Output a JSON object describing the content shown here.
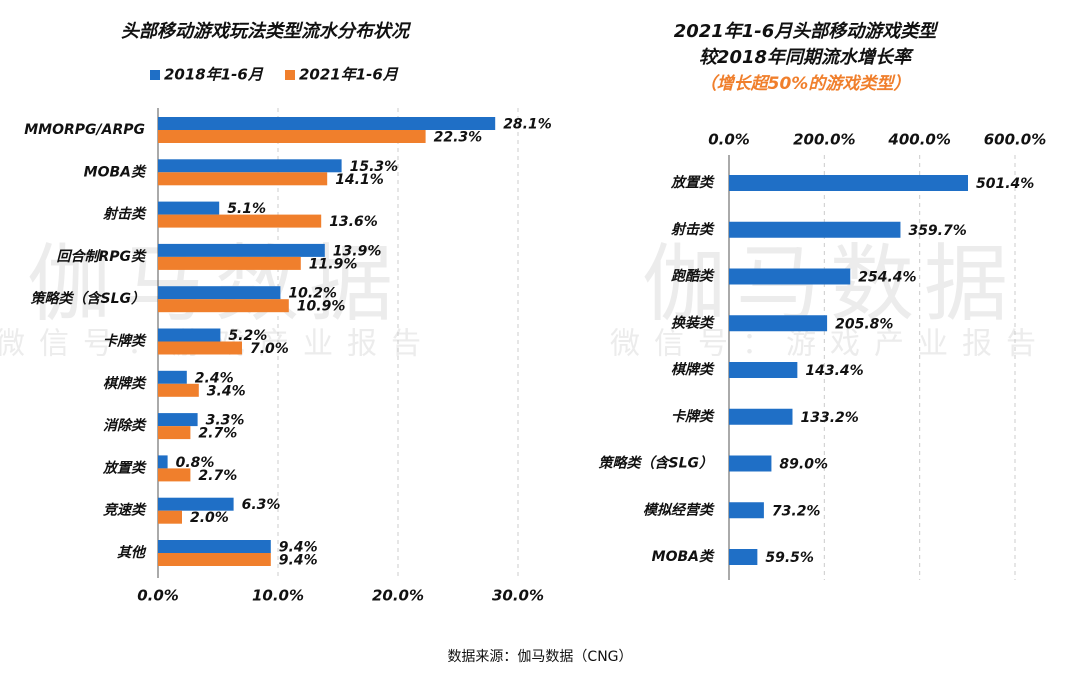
{
  "chart_data": [
    {
      "type": "bar",
      "title": [
        "头部移动游戏玩法类型流水分布状况"
      ],
      "categories": [
        "MMORPG/ARPG",
        "MOBA类",
        "射击类",
        "回合制RPG类",
        "策略类（含SLG）",
        "卡牌类",
        "棋牌类",
        "消除类",
        "放置类",
        "竞速类",
        "其他"
      ],
      "series": [
        {
          "name": "2018年1-6月",
          "color": "#1f6fc6",
          "values": [
            28.1,
            15.3,
            5.1,
            13.9,
            10.2,
            5.2,
            2.4,
            3.3,
            0.8,
            6.3,
            9.4
          ],
          "value_labels": [
            "28.1%",
            "15.3%",
            "5.1%",
            "13.9%",
            "10.2%",
            "5.2%",
            "2.4%",
            "3.3%",
            "0.8%",
            "6.3%",
            "9.4%"
          ]
        },
        {
          "name": "2021年1-6月",
          "color": "#f07f2c",
          "values": [
            22.3,
            14.1,
            13.6,
            11.9,
            10.9,
            7.0,
            3.4,
            2.7,
            2.7,
            2.0,
            9.4
          ],
          "value_labels": [
            "22.3%",
            "14.1%",
            "13.6%",
            "11.9%",
            "10.9%",
            "7.0%",
            "3.4%",
            "2.7%",
            "2.7%",
            "2.0%",
            "9.4%"
          ]
        }
      ],
      "xlim": [
        0,
        30
      ],
      "xticks": [
        {
          "value": 0,
          "label": "0.0%"
        },
        {
          "value": 10,
          "label": "10.0%"
        },
        {
          "value": 20,
          "label": "20.0%"
        },
        {
          "value": 30,
          "label": "30.0%"
        }
      ],
      "grid": true,
      "legend": "top"
    },
    {
      "type": "bar",
      "title": [
        "2021年1-6月头部移动游戏类型",
        "较2018年同期流水增长率"
      ],
      "subtitle": "（增长超50%的游戏类型）",
      "categories": [
        "放置类",
        "射击类",
        "跑酷类",
        "换装类",
        "棋牌类",
        "卡牌类",
        "策略类（含SLG）",
        "模拟经营类",
        "MOBA类"
      ],
      "series": [
        {
          "color": "#1f6fc6",
          "values": [
            501.4,
            359.7,
            254.4,
            205.8,
            143.4,
            133.2,
            89.0,
            73.2,
            59.5
          ],
          "value_labels": [
            "501.4%",
            "359.7%",
            "254.4%",
            "205.8%",
            "143.4%",
            "133.2%",
            "89.0%",
            "73.2%",
            "59.5%"
          ]
        }
      ],
      "xlim": [
        0,
        600
      ],
      "xticks": [
        {
          "value": 0,
          "label": "0.0%"
        },
        {
          "value": 200,
          "label": "200.0%"
        },
        {
          "value": 400,
          "label": "400.0%"
        },
        {
          "value": 600,
          "label": "600.0%"
        }
      ],
      "grid": true
    }
  ],
  "watermark": [
    "伽马数据",
    "微信号：游戏产业报告"
  ],
  "source": "数据来源：伽马数据（CNG）"
}
